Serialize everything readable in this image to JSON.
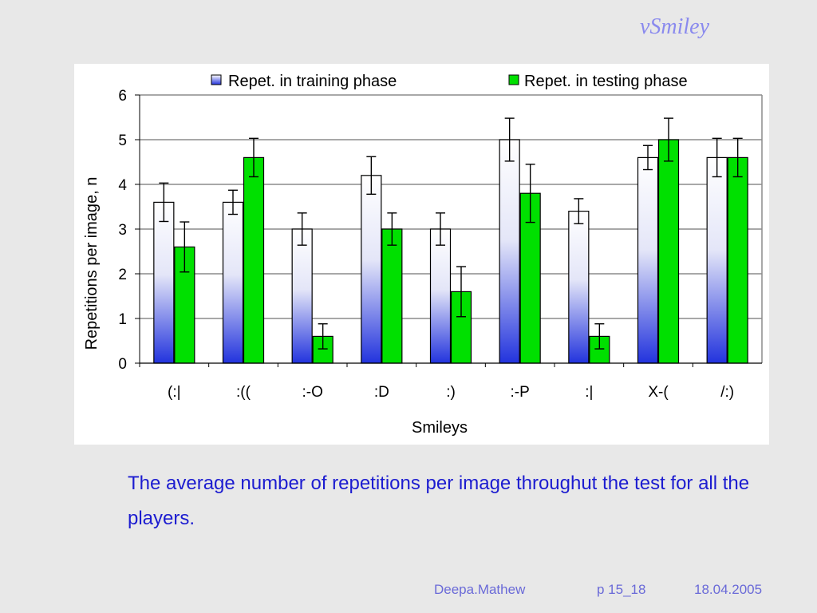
{
  "slide": {
    "title": "vSmiley",
    "caption": "The average number of repetitions per image throughut the test for all the players.",
    "footer": {
      "author": "Deepa.Mathew",
      "page": "p 15_18",
      "date": "18.04.2005"
    }
  },
  "chart_data": {
    "type": "bar",
    "xlabel": "Smileys",
    "ylabel": "Repetitions per image, n",
    "ylim": [
      0,
      6
    ],
    "yticks": [
      0,
      1,
      2,
      3,
      4,
      5,
      6
    ],
    "grid": true,
    "legend_position": "top",
    "categories": [
      "(:|",
      ":((",
      ":-O",
      ":D",
      ":)",
      ":-P",
      ":|",
      "X-(",
      "/:)"
    ],
    "series": [
      {
        "name": "Repet. in training phase",
        "values": [
          3.6,
          3.6,
          3.0,
          4.2,
          3.0,
          5.0,
          3.4,
          4.6,
          4.6
        ],
        "error": [
          0.43,
          0.27,
          0.36,
          0.42,
          0.36,
          0.48,
          0.28,
          0.27,
          0.43
        ],
        "color": "gradient-blue-white"
      },
      {
        "name": "Repet. in testing phase",
        "values": [
          2.6,
          4.6,
          0.6,
          3.0,
          1.6,
          3.8,
          0.6,
          5.0,
          4.6
        ],
        "error": [
          0.56,
          0.43,
          0.28,
          0.36,
          0.56,
          0.65,
          0.28,
          0.48,
          0.43
        ],
        "color": "#00e000"
      }
    ]
  }
}
